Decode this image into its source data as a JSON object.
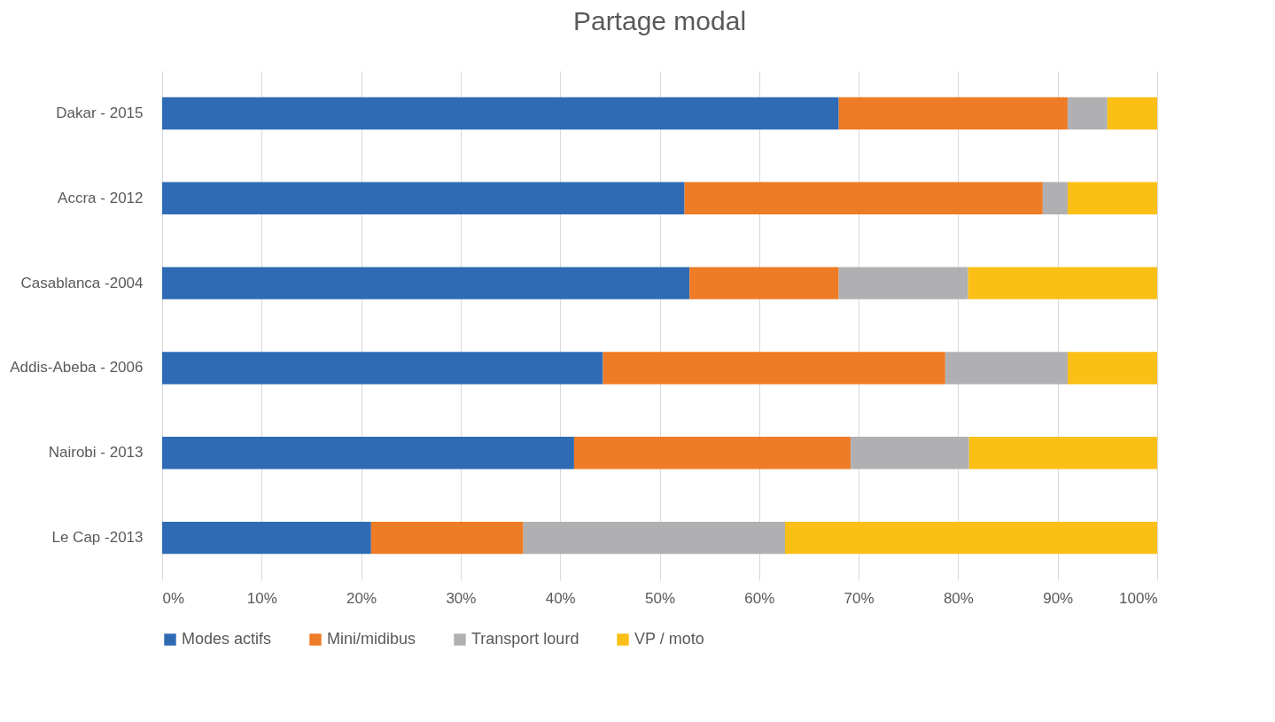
{
  "chart_data": {
    "type": "bar",
    "title": "Partage modal",
    "orientation": "horizontal",
    "stacked": true,
    "grid": "x",
    "legend": "bottom",
    "categories": [
      "Dakar - 2015",
      "Accra - 2012",
      "Casablanca -2004",
      "Addis-Abeba - 2006",
      "Nairobi - 2013",
      "Le Cap -2013"
    ],
    "series": [
      {
        "name": "Modes actifs",
        "color": "#2f6bb5",
        "values": [
          68,
          52.5,
          53,
          44.3,
          41.4,
          21
        ]
      },
      {
        "name": "Mini/midibus",
        "color": "#ee7b25",
        "values": [
          23,
          36,
          15,
          34.4,
          27.8,
          15.3
        ]
      },
      {
        "name": "Transport lourd",
        "color": "#b0b0b3",
        "values": [
          4,
          2.5,
          13,
          12.3,
          11.9,
          26.3
        ]
      },
      {
        "name": "VP / moto",
        "color": "#fbbf16",
        "values": [
          5,
          9,
          19,
          9,
          18.9,
          37.4
        ]
      }
    ],
    "xlim": [
      0,
      100
    ],
    "xticks": [
      {
        "value": 0,
        "label": "0%"
      },
      {
        "value": 10,
        "label": "10%"
      },
      {
        "value": 20,
        "label": "20%"
      },
      {
        "value": 30,
        "label": "30%"
      },
      {
        "value": 40,
        "label": "40%"
      },
      {
        "value": 50,
        "label": "50%"
      },
      {
        "value": 60,
        "label": "60%"
      },
      {
        "value": 70,
        "label": "70%"
      },
      {
        "value": 80,
        "label": "80%"
      },
      {
        "value": 90,
        "label": "90%"
      },
      {
        "value": 100,
        "label": "100%"
      }
    ]
  }
}
